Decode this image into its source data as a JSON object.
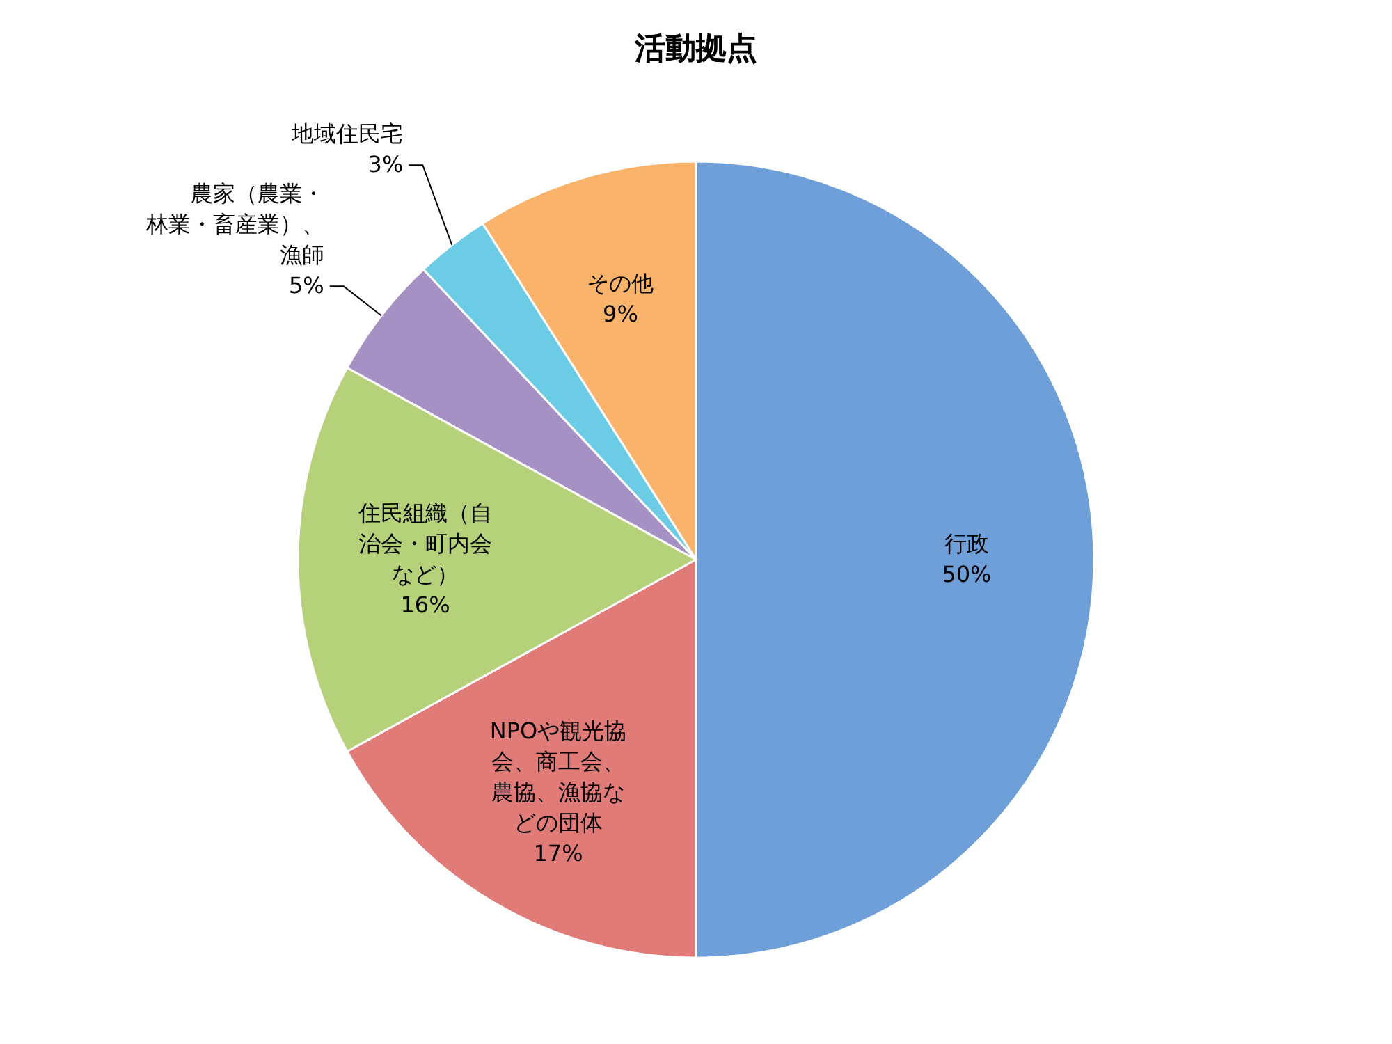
{
  "chart_data": {
    "type": "pie",
    "title": "活動拠点",
    "categories": [
      "行政",
      "NPOや観光協会、商工会、農協、漁協などの団体",
      "住民組織（自治会・町内会など）",
      "農家（農業・林業・畜産業）、漁師",
      "地域住民宅",
      "その他"
    ],
    "values": [
      50,
      17,
      16,
      5,
      3,
      9
    ],
    "colors": [
      "#6f9fd8",
      "#e07b78",
      "#b5d17a",
      "#a691c4",
      "#6ccce6",
      "#f9b36b"
    ],
    "value_labels": [
      "50%",
      "17%",
      "16%",
      "5%",
      "3%",
      "9%"
    ]
  }
}
